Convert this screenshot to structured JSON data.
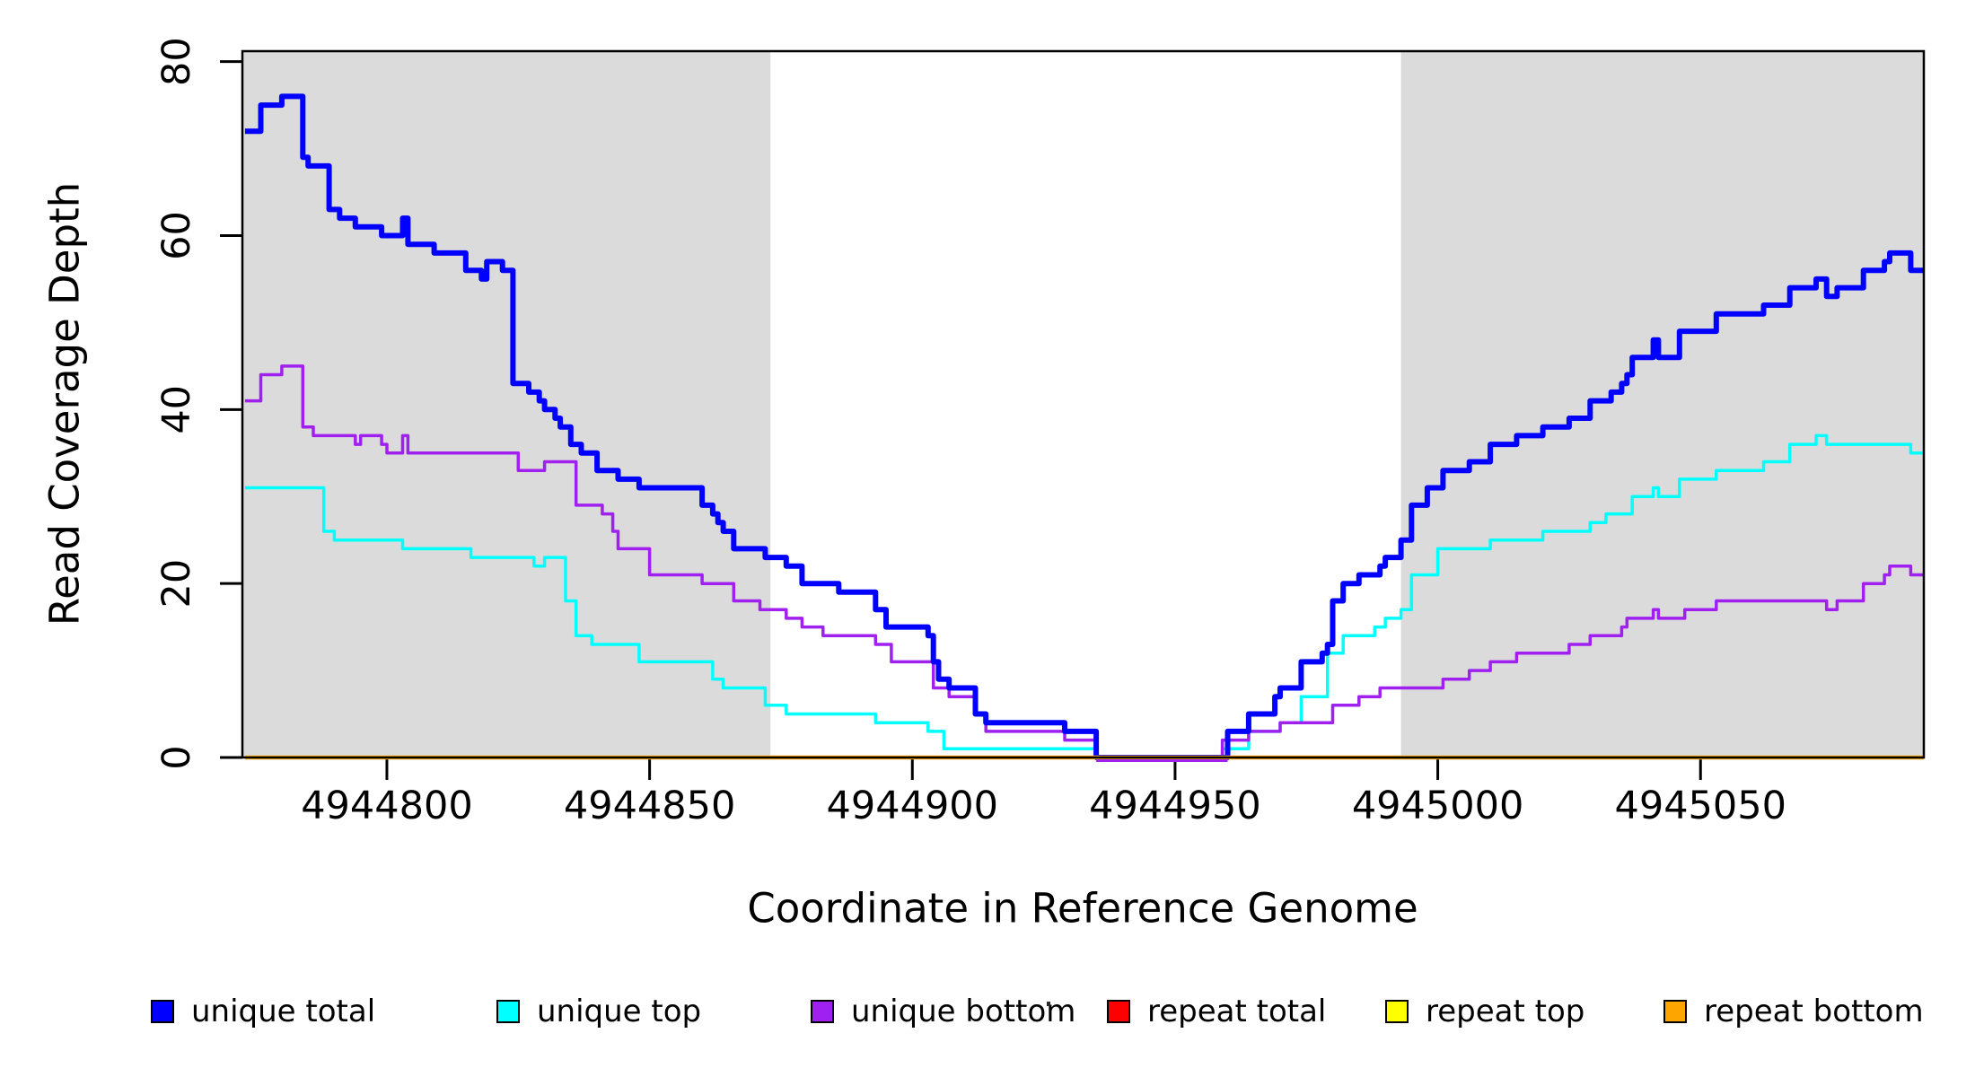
{
  "axes": {
    "x_title": "Coordinate in Reference Genome",
    "y_title": "Read Coverage Depth"
  },
  "legend": {
    "items": [
      {
        "label": "unique total",
        "color": "#0000FF"
      },
      {
        "label": "unique top",
        "color": "#00FFFF"
      },
      {
        "label": "unique bottom",
        "color": "#A020F0"
      },
      {
        "label": "repeat total",
        "color": "#FF0000"
      },
      {
        "label": "repeat top",
        "color": "#FFFF00"
      },
      {
        "label": "repeat bottom",
        "color": "#FFA500"
      }
    ]
  },
  "colors": {
    "background": "#FFFFFF",
    "shading": "#DBDBDB",
    "frame": "#000000"
  },
  "chart_data": {
    "type": "line",
    "style": "step-after",
    "title": "",
    "xlabel": "Coordinate in Reference Genome",
    "ylabel": "Read Coverage Depth",
    "xlim": [
      4944772.5,
      4945092.5
    ],
    "ylim": [
      0,
      81.2
    ],
    "grid": false,
    "legend_position": "bottom",
    "x_ticks": [
      {
        "value": 4944800,
        "label": "4944800"
      },
      {
        "value": 4944850,
        "label": "4944850"
      },
      {
        "value": 4944900,
        "label": "4944900"
      },
      {
        "value": 4944950,
        "label": "4944950"
      },
      {
        "value": 4945000,
        "label": "4945000"
      },
      {
        "value": 4945050,
        "label": "4945050"
      }
    ],
    "y_ticks": [
      {
        "value": 0,
        "label": "0"
      },
      {
        "value": 20,
        "label": "20"
      },
      {
        "value": 40,
        "label": "40"
      },
      {
        "value": 60,
        "label": "60"
      },
      {
        "value": 80,
        "label": "80"
      }
    ],
    "shaded_regions": [
      {
        "x1": 4944772.5,
        "x2": 4944873
      },
      {
        "x1": 4944993,
        "x2": 4945092.5
      }
    ],
    "series": [
      {
        "name": "unique total",
        "color": "#0000FF",
        "width": 6,
        "points": [
          [
            4944773,
            72
          ],
          [
            4944776,
            75
          ],
          [
            4944780,
            76
          ],
          [
            4944784,
            69
          ],
          [
            4944785,
            68
          ],
          [
            4944789,
            63
          ],
          [
            4944791,
            62
          ],
          [
            4944794,
            61
          ],
          [
            4944799,
            60
          ],
          [
            4944803,
            62
          ],
          [
            4944804,
            59
          ],
          [
            4944809,
            58
          ],
          [
            4944815,
            56
          ],
          [
            4944818,
            55
          ],
          [
            4944819,
            57
          ],
          [
            4944822,
            56
          ],
          [
            4944824,
            43
          ],
          [
            4944827,
            42
          ],
          [
            4944829,
            41
          ],
          [
            4944830,
            40
          ],
          [
            4944832,
            39
          ],
          [
            4944833,
            38
          ],
          [
            4944835,
            36
          ],
          [
            4944837,
            35
          ],
          [
            4944840,
            33
          ],
          [
            4944844,
            32
          ],
          [
            4944848,
            31
          ],
          [
            4944860,
            29
          ],
          [
            4944862,
            28
          ],
          [
            4944863,
            27
          ],
          [
            4944864,
            26
          ],
          [
            4944866,
            24
          ],
          [
            4944872,
            23
          ],
          [
            4944876,
            22
          ],
          [
            4944879,
            20
          ],
          [
            4944886,
            19
          ],
          [
            4944893,
            17
          ],
          [
            4944895,
            15
          ],
          [
            4944903,
            14
          ],
          [
            4944904,
            11
          ],
          [
            4944905,
            9
          ],
          [
            4944907,
            8
          ],
          [
            4944912,
            5
          ],
          [
            4944914,
            4
          ],
          [
            4944929,
            3
          ],
          [
            4944935,
            0
          ],
          [
            4944960,
            3
          ],
          [
            4944964,
            5
          ],
          [
            4944969,
            7
          ],
          [
            4944970,
            8
          ],
          [
            4944974,
            11
          ],
          [
            4944978,
            12
          ],
          [
            4944979,
            13
          ],
          [
            4944980,
            18
          ],
          [
            4944982,
            20
          ],
          [
            4944985,
            21
          ],
          [
            4944989,
            22
          ],
          [
            4944990,
            23
          ],
          [
            4944993,
            25
          ],
          [
            4944995,
            29
          ],
          [
            4944998,
            31
          ],
          [
            4945001,
            33
          ],
          [
            4945006,
            34
          ],
          [
            4945010,
            36
          ],
          [
            4945015,
            37
          ],
          [
            4945020,
            38
          ],
          [
            4945025,
            39
          ],
          [
            4945029,
            41
          ],
          [
            4945033,
            42
          ],
          [
            4945035,
            43
          ],
          [
            4945036,
            44
          ],
          [
            4945037,
            46
          ],
          [
            4945041,
            48
          ],
          [
            4945042,
            46
          ],
          [
            4945046,
            49
          ],
          [
            4945053,
            51
          ],
          [
            4945062,
            52
          ],
          [
            4945067,
            54
          ],
          [
            4945072,
            55
          ],
          [
            4945074,
            53
          ],
          [
            4945076,
            54
          ],
          [
            4945081,
            56
          ],
          [
            4945085,
            57
          ],
          [
            4945086,
            58
          ],
          [
            4945090,
            56
          ]
        ]
      },
      {
        "name": "unique top",
        "color": "#00FFFF",
        "width": 3.5,
        "points": [
          [
            4944773,
            31
          ],
          [
            4944788,
            26
          ],
          [
            4944790,
            25
          ],
          [
            4944803,
            24
          ],
          [
            4944816,
            23
          ],
          [
            4944828,
            22
          ],
          [
            4944830,
            23
          ],
          [
            4944834,
            18
          ],
          [
            4944836,
            14
          ],
          [
            4944839,
            13
          ],
          [
            4944848,
            11
          ],
          [
            4944862,
            9
          ],
          [
            4944864,
            8
          ],
          [
            4944872,
            6
          ],
          [
            4944876,
            5
          ],
          [
            4944893,
            4
          ],
          [
            4944903,
            3
          ],
          [
            4944906,
            1
          ],
          [
            4944935,
            0
          ],
          [
            4944959,
            1
          ],
          [
            4944964,
            3
          ],
          [
            4944970,
            4
          ],
          [
            4944974,
            7
          ],
          [
            4944979,
            12
          ],
          [
            4944982,
            14
          ],
          [
            4944988,
            15
          ],
          [
            4944990,
            16
          ],
          [
            4944993,
            17
          ],
          [
            4944995,
            21
          ],
          [
            4945000,
            24
          ],
          [
            4945010,
            25
          ],
          [
            4945020,
            26
          ],
          [
            4945029,
            27
          ],
          [
            4945032,
            28
          ],
          [
            4945037,
            30
          ],
          [
            4945041,
            31
          ],
          [
            4945042,
            30
          ],
          [
            4945046,
            32
          ],
          [
            4945053,
            33
          ],
          [
            4945062,
            34
          ],
          [
            4945067,
            36
          ],
          [
            4945072,
            37
          ],
          [
            4945074,
            36
          ],
          [
            4945090,
            35
          ]
        ]
      },
      {
        "name": "unique bottom",
        "color": "#A020F0",
        "width": 3.5,
        "points": [
          [
            4944773,
            41
          ],
          [
            4944776,
            44
          ],
          [
            4944780,
            45
          ],
          [
            4944784,
            38
          ],
          [
            4944786,
            37
          ],
          [
            4944794,
            36
          ],
          [
            4944795,
            37
          ],
          [
            4944799,
            36
          ],
          [
            4944800,
            35
          ],
          [
            4944803,
            37
          ],
          [
            4944804,
            35
          ],
          [
            4944825,
            33
          ],
          [
            4944830,
            34
          ],
          [
            4944836,
            29
          ],
          [
            4944841,
            28
          ],
          [
            4944843,
            26
          ],
          [
            4944844,
            24
          ],
          [
            4944850,
            21
          ],
          [
            4944860,
            20
          ],
          [
            4944866,
            18
          ],
          [
            4944871,
            17
          ],
          [
            4944876,
            16
          ],
          [
            4944879,
            15
          ],
          [
            4944883,
            14
          ],
          [
            4944893,
            13
          ],
          [
            4944896,
            11
          ],
          [
            4944904,
            8
          ],
          [
            4944907,
            7
          ],
          [
            4944912,
            5
          ],
          [
            4944914,
            3
          ],
          [
            4944929,
            2
          ],
          [
            4944935,
            0
          ],
          [
            4944959,
            2
          ],
          [
            4944964,
            3
          ],
          [
            4944970,
            4
          ],
          [
            4944980,
            6
          ],
          [
            4944985,
            7
          ],
          [
            4944989,
            8
          ],
          [
            4945001,
            9
          ],
          [
            4945006,
            10
          ],
          [
            4945010,
            11
          ],
          [
            4945015,
            12
          ],
          [
            4945025,
            13
          ],
          [
            4945029,
            14
          ],
          [
            4945035,
            15
          ],
          [
            4945036,
            16
          ],
          [
            4945041,
            17
          ],
          [
            4945042,
            16
          ],
          [
            4945047,
            17
          ],
          [
            4945053,
            18
          ],
          [
            4945074,
            17
          ],
          [
            4945076,
            18
          ],
          [
            4945081,
            20
          ],
          [
            4945085,
            21
          ],
          [
            4945086,
            22
          ],
          [
            4945090,
            21
          ]
        ]
      },
      {
        "name": "repeat total",
        "color": "#FF0000",
        "width": 3,
        "points": [
          [
            4944773,
            0
          ],
          [
            4945092,
            0
          ]
        ]
      },
      {
        "name": "repeat top",
        "color": "#FFFF00",
        "width": 3,
        "points": [
          [
            4944773,
            0
          ],
          [
            4945092,
            0
          ]
        ]
      },
      {
        "name": "repeat bottom",
        "color": "#FFA500",
        "width": 4.5,
        "points": [
          [
            4944773,
            0
          ],
          [
            4945092,
            0
          ]
        ]
      }
    ],
    "zero_overlay": {
      "color": "#A020F0",
      "x1": 4944935,
      "x2": 4944960,
      "width": 3
    }
  }
}
